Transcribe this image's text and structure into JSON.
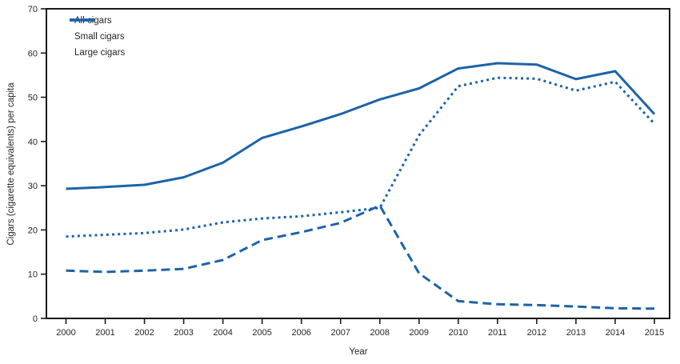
{
  "chart_data": {
    "type": "line",
    "title": "",
    "xlabel": "Year",
    "ylabel": "Cigars (cigarette equivalents) per capita",
    "x": [
      2000,
      2001,
      2002,
      2003,
      2004,
      2005,
      2006,
      2007,
      2008,
      2009,
      2010,
      2011,
      2012,
      2013,
      2014,
      2015
    ],
    "series": [
      {
        "name": "All cigars",
        "style": "solid",
        "values": [
          29.3,
          29.7,
          30.2,
          31.9,
          35.2,
          40.8,
          43.4,
          46.2,
          49.5,
          52.0,
          56.5,
          57.7,
          57.4,
          54.1,
          55.9,
          46.2
        ]
      },
      {
        "name": "Small cigars",
        "style": "dashed",
        "values": [
          10.8,
          10.5,
          10.8,
          11.2,
          13.2,
          17.7,
          19.5,
          21.6,
          25.5,
          10.2,
          3.9,
          3.2,
          3.0,
          2.7,
          2.3,
          2.2
        ]
      },
      {
        "name": "Large cigars",
        "style": "dotted",
        "values": [
          18.5,
          18.9,
          19.3,
          20.1,
          21.7,
          22.6,
          23.1,
          24.0,
          25.0,
          41.4,
          52.5,
          54.4,
          54.2,
          51.5,
          53.5,
          44.0
        ]
      }
    ],
    "ylim": [
      0,
      70
    ],
    "yticks": [
      0,
      10,
      20,
      30,
      40,
      50,
      60,
      70
    ],
    "grid": false,
    "legend_position": "top-left",
    "line_color": "#1d63a8",
    "axis_color": "#1a1a1a",
    "text_color": "#262626"
  }
}
